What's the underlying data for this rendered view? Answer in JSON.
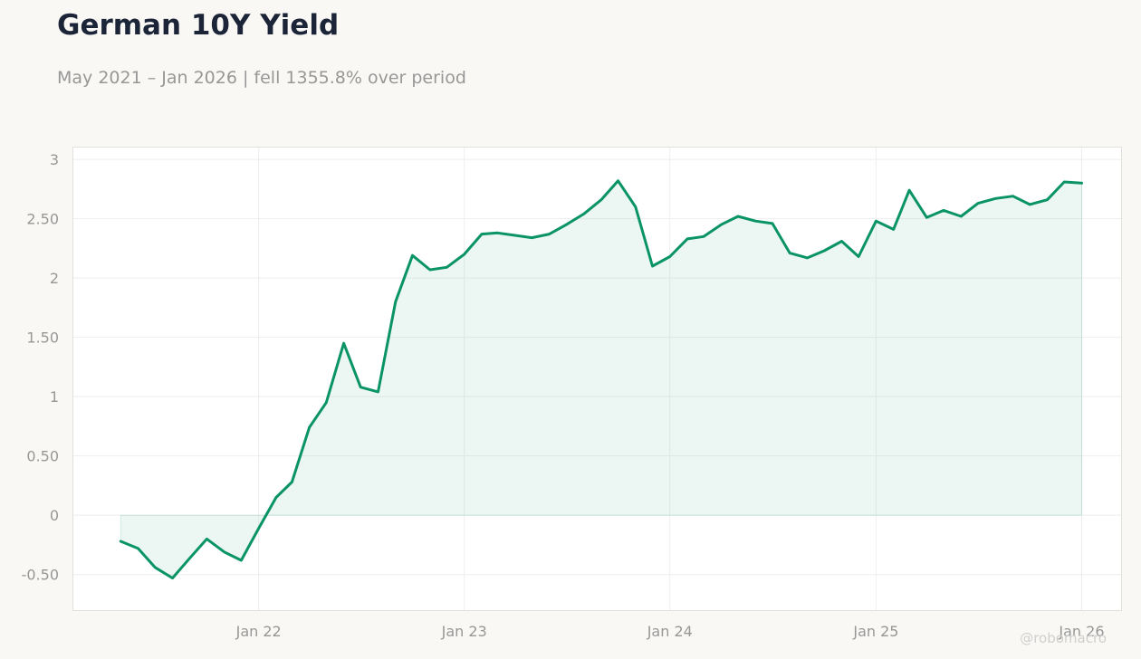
{
  "header": {
    "title": "German 10Y Yield",
    "subtitle": "May 2021 – Jan 2026 | fell 1355.8% over period"
  },
  "watermark": "@robomacro",
  "colors": {
    "line": "#0a9466",
    "fill": "#0a9466",
    "grid": "#eeeeee",
    "tick_text": "#979797",
    "background": "#f9f8f5",
    "plot_background": "#ffffff"
  },
  "chart_data": {
    "type": "area",
    "title": "German 10Y Yield",
    "xlabel": "",
    "ylabel": "",
    "ylim": [
      -0.8,
      3.1
    ],
    "xlim": [
      "2021-02-06",
      "2026-03-12"
    ],
    "grid": true,
    "legend": "none",
    "x_ticks": [
      {
        "date": "2022-01-01",
        "label": "Jan 22"
      },
      {
        "date": "2023-01-01",
        "label": "Jan 23"
      },
      {
        "date": "2024-01-01",
        "label": "Jan 24"
      },
      {
        "date": "2025-01-01",
        "label": "Jan 25"
      },
      {
        "date": "2026-01-01",
        "label": "Jan 26"
      }
    ],
    "y_ticks": [
      {
        "value": -0.5,
        "label": "-0.50"
      },
      {
        "value": 0,
        "label": "0"
      },
      {
        "value": 0.5,
        "label": "0.50"
      },
      {
        "value": 1,
        "label": "1"
      },
      {
        "value": 1.5,
        "label": "1.50"
      },
      {
        "value": 2,
        "label": "2"
      },
      {
        "value": 2.5,
        "label": "2.50"
      },
      {
        "value": 3,
        "label": "3"
      }
    ],
    "series": [
      {
        "x": [
          "2021-05-01",
          "2021-06-01",
          "2021-07-01",
          "2021-08-01",
          "2021-09-01",
          "2021-10-01",
          "2021-11-01",
          "2021-12-01",
          "2022-01-01",
          "2022-02-01",
          "2022-03-01",
          "2022-04-01",
          "2022-05-01",
          "2022-06-01",
          "2022-07-01",
          "2022-08-01",
          "2022-09-01",
          "2022-10-01",
          "2022-11-01",
          "2022-12-01",
          "2023-01-01",
          "2023-02-01",
          "2023-03-01",
          "2023-04-01",
          "2023-05-01",
          "2023-06-01",
          "2023-07-01",
          "2023-08-01",
          "2023-09-01",
          "2023-10-01",
          "2023-11-01",
          "2023-12-01",
          "2024-01-01",
          "2024-02-01",
          "2024-03-01",
          "2024-04-01",
          "2024-05-01",
          "2024-06-01",
          "2024-07-01",
          "2024-08-01",
          "2024-09-01",
          "2024-10-01",
          "2024-11-01",
          "2024-12-01",
          "2025-01-01",
          "2025-02-01",
          "2025-03-01",
          "2025-04-01",
          "2025-05-01",
          "2025-06-01",
          "2025-07-01",
          "2025-08-01",
          "2025-09-01",
          "2025-10-01",
          "2025-11-01",
          "2025-12-01",
          "2026-01-01"
        ],
        "values": [
          -0.22,
          -0.28,
          -0.44,
          -0.53,
          -0.36,
          -0.2,
          -0.31,
          -0.38,
          -0.11,
          0.15,
          0.28,
          0.74,
          0.95,
          1.45,
          1.08,
          1.04,
          1.8,
          2.19,
          2.07,
          2.09,
          2.2,
          2.37,
          2.38,
          2.36,
          2.34,
          2.37,
          2.45,
          2.54,
          2.66,
          2.82,
          2.6,
          2.1,
          2.18,
          2.33,
          2.35,
          2.45,
          2.52,
          2.48,
          2.46,
          2.21,
          2.17,
          2.23,
          2.31,
          2.18,
          2.48,
          2.41,
          2.74,
          2.51,
          2.57,
          2.52,
          2.63,
          2.67,
          2.69,
          2.62,
          2.66,
          2.81,
          2.8
        ]
      }
    ]
  }
}
